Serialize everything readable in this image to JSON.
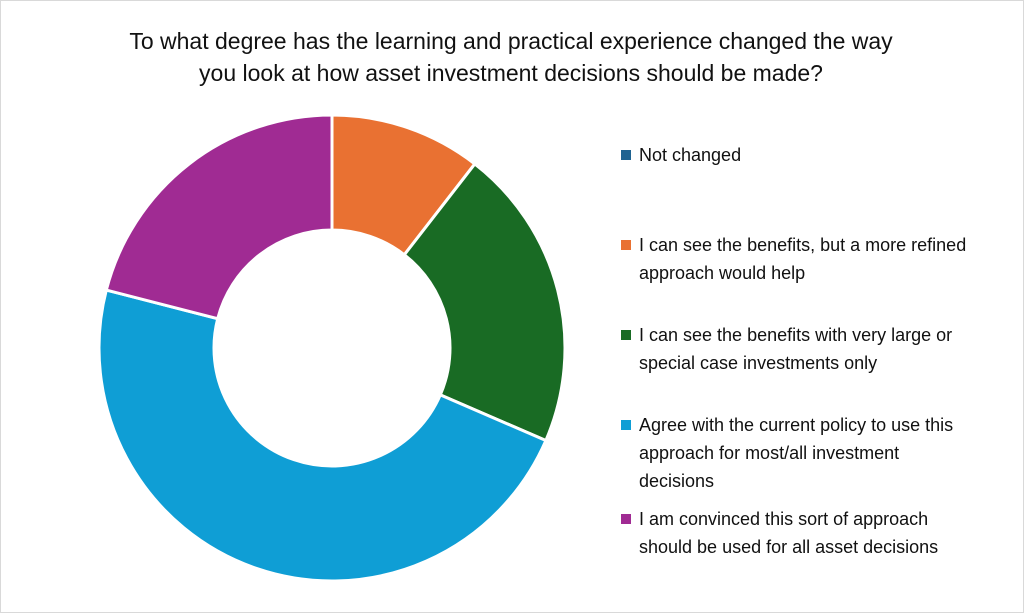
{
  "chart_data": {
    "type": "pie",
    "title_lines": [
      "To what degree has the learning and practical experience changed the way",
      "you look at how asset investment decisions should be made?"
    ],
    "categories": [
      "Not changed",
      "I can see the benefits, but a more refined approach would help",
      "I can see the benefits with very large or special case investments only",
      "Agree with the current policy to use this approach for most/all investment decisions",
      "I am convinced this sort of approach should be used for all asset decisions"
    ],
    "values": [
      0,
      10.5,
      21.0,
      47.5,
      21.0
    ],
    "colors": [
      "#1f6391",
      "#e97132",
      "#196b24",
      "#0f9ed5",
      "#a02b93"
    ],
    "legend_position": "right",
    "donut": true
  },
  "legend": {
    "items": [
      {
        "lines": [
          "Not changed"
        ]
      },
      {
        "lines": [
          "I can see the benefits, but a more refined",
          "approach would help"
        ]
      },
      {
        "lines": [
          "I can see the benefits with very large or",
          "special case investments only"
        ]
      },
      {
        "lines": [
          "Agree with the current policy to use this",
          "approach for most/all investment",
          "decisions"
        ]
      },
      {
        "lines": [
          "I am convinced this sort of approach",
          "should be used for all asset decisions"
        ]
      }
    ]
  }
}
